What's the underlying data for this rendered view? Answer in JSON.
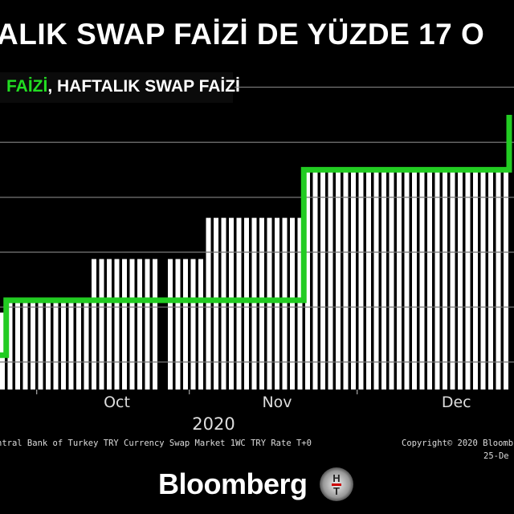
{
  "header": {
    "title": "ALIK SWAP FAİZİ DE YÜZDE 17 O",
    "legend_green": "FAİZİ",
    "legend_white": ", HAFTALIK SWAP FAİZİ"
  },
  "footer": {
    "source": "ntral Bank of Turkey TRY Currency Swap Market 1WC TRY Rate T+0",
    "copyright": "Copyright© 2020 Bloomb",
    "date": "25-De",
    "brand": "Bloomberg",
    "logo_text": "HT"
  },
  "colors": {
    "background": "#000000",
    "bars": "#ffffff",
    "line": "#22cc22",
    "grid": "#777777"
  },
  "chart_data": {
    "type": "bar",
    "title": "",
    "xlabel": "2020",
    "ylabel": "",
    "ylim": [
      7,
      17.5
    ],
    "grid": true,
    "gridlines_y": [
      8,
      10,
      12,
      14,
      16
    ],
    "x_ticks": [
      {
        "label": "Oct",
        "tick_index": 4.5,
        "label_index": 15
      },
      {
        "label": "Nov",
        "tick_index": 24.5,
        "label_index": 36
      },
      {
        "label": "Dec",
        "tick_index": 46.5,
        "label_index": 59.5
      }
    ],
    "year_label": "2020",
    "series": [
      {
        "type": "bar",
        "color": "#ffffff",
        "values": [
          9.8,
          10.15,
          10.15,
          10.15,
          10.15,
          10.15,
          10.15,
          10.15,
          10.15,
          10.15,
          10.15,
          10.15,
          11.75,
          11.75,
          11.75,
          11.75,
          11.75,
          11.75,
          11.75,
          11.75,
          11.75,
          null,
          11.75,
          11.75,
          11.75,
          11.75,
          11.75,
          13.25,
          13.25,
          13.25,
          13.25,
          13.25,
          13.25,
          13.25,
          13.25,
          13.25,
          13.25,
          13.25,
          13.25,
          13.25,
          14.95,
          14.95,
          14.95,
          14.95,
          14.95,
          14.95,
          14.95,
          14.95,
          14.95,
          14.95,
          14.95,
          14.95,
          14.95,
          14.95,
          14.95,
          14.95,
          14.95,
          14.95,
          14.95,
          14.95,
          14.95,
          14.95,
          14.95,
          14.95,
          14.95,
          14.95,
          14.95
        ]
      },
      {
        "type": "step",
        "color": "#22cc22",
        "values": [
          8.25,
          10.25,
          10.25,
          10.25,
          10.25,
          10.25,
          10.25,
          10.25,
          10.25,
          10.25,
          10.25,
          10.25,
          10.25,
          10.25,
          10.25,
          10.25,
          10.25,
          10.25,
          10.25,
          10.25,
          10.25,
          10.25,
          10.25,
          10.25,
          10.25,
          10.25,
          10.25,
          10.25,
          10.25,
          10.25,
          10.25,
          10.25,
          10.25,
          10.25,
          10.25,
          10.25,
          10.25,
          10.25,
          10.25,
          10.25,
          15,
          15,
          15,
          15,
          15,
          15,
          15,
          15,
          15,
          15,
          15,
          15,
          15,
          15,
          15,
          15,
          15,
          15,
          15,
          15,
          15,
          15,
          15,
          15,
          15,
          15,
          15,
          17
        ]
      }
    ]
  }
}
